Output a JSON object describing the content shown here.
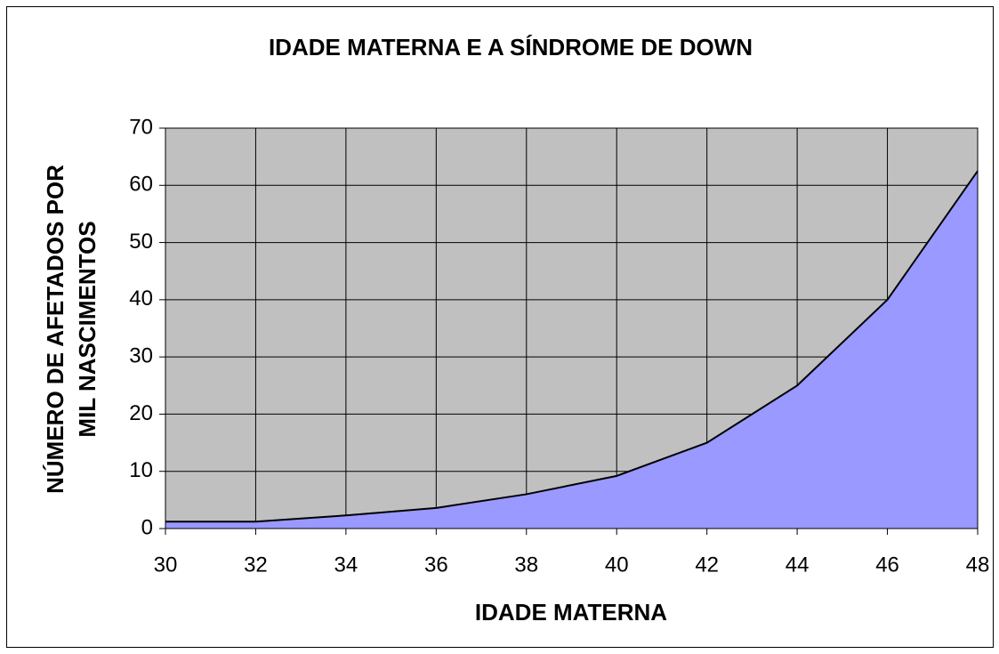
{
  "chart_data": {
    "type": "area",
    "title": "IDADE MATERNA E A SÍNDROME DE DOWN",
    "xlabel": "IDADE MATERNA",
    "ylabel": [
      "NÚMERO DE AFETADOS POR",
      "MIL NASCIMENTOS"
    ],
    "x": [
      30,
      32,
      34,
      36,
      38,
      40,
      42,
      44,
      46,
      48
    ],
    "values": [
      1.2,
      1.2,
      2.3,
      3.6,
      6,
      9.2,
      15,
      25,
      40,
      62.5
    ],
    "color": "#9999ff",
    "xlim": [
      30,
      48
    ],
    "xticks": [
      30,
      32,
      34,
      36,
      38,
      40,
      42,
      44,
      46,
      48
    ],
    "ylim": [
      0,
      70
    ],
    "yticks": [
      0,
      10,
      20,
      30,
      40,
      50,
      60,
      70
    ],
    "grid": true
  }
}
